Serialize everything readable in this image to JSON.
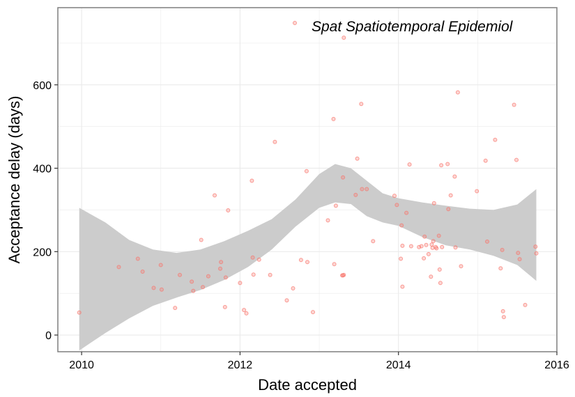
{
  "chart_data": {
    "type": "scatter",
    "title": "",
    "xlabel": "Date accepted",
    "ylabel": "Acceptance delay (days)",
    "xlim": [
      2009.7,
      2016.0
    ],
    "ylim": [
      -40,
      785
    ],
    "x_ticks": [
      2010,
      2012,
      2014,
      2016
    ],
    "y_ticks": [
      0,
      200,
      400,
      600
    ],
    "grid": true,
    "legend_position": "top-right",
    "colors": {
      "points": "#f8766d",
      "ribbon": "#cccccc",
      "panel_border": "#7f7f7f",
      "grid": "#ebebeb"
    },
    "series": [
      {
        "name": "Spat Spatiotemporal Epidemiol",
        "x": [
          2009.97,
          2010.47,
          2010.71,
          2010.77,
          2010.91,
          2011.0,
          2011.01,
          2011.18,
          2011.24,
          2011.39,
          2011.41,
          2011.51,
          2011.53,
          2011.6,
          2011.68,
          2011.75,
          2011.76,
          2011.81,
          2011.82,
          2011.85,
          2012.0,
          2012.05,
          2012.08,
          2012.15,
          2012.16,
          2012.17,
          2012.24,
          2012.38,
          2012.44,
          2012.59,
          2012.67,
          2012.77,
          2012.84,
          2012.85,
          2012.92,
          2013.11,
          2013.18,
          2013.19,
          2013.21,
          2013.29,
          2013.3,
          2013.3,
          2013.31,
          2013.31,
          2013.46,
          2013.48,
          2013.53,
          2013.54,
          2013.6,
          2013.68,
          2013.95,
          2013.98,
          2014.03,
          2014.04,
          2014.05,
          2014.05,
          2014.1,
          2014.14,
          2014.16,
          2014.26,
          2014.29,
          2014.32,
          2014.33,
          2014.35,
          2014.38,
          2014.41,
          2014.42,
          2014.43,
          2014.44,
          2014.45,
          2014.47,
          2014.48,
          2014.51,
          2014.52,
          2014.53,
          2014.54,
          2014.55,
          2014.62,
          2014.63,
          2014.66,
          2014.71,
          2014.72,
          2014.75,
          2014.79,
          2014.99,
          2015.1,
          2015.12,
          2015.22,
          2015.29,
          2015.31,
          2015.32,
          2015.33,
          2015.46,
          2015.49,
          2015.51,
          2015.53,
          2015.6,
          2015.73,
          2015.74
        ],
        "y": [
          54,
          163,
          183,
          152,
          113,
          168,
          109,
          65,
          144,
          128,
          106,
          228,
          115,
          141,
          335,
          159,
          175,
          67,
          138,
          299,
          125,
          60,
          52,
          370,
          186,
          145,
          181,
          144,
          463,
          83,
          112,
          180,
          393,
          175,
          55,
          275,
          518,
          170,
          310,
          143,
          143,
          378,
          713,
          144,
          336,
          423,
          554,
          350,
          350,
          225,
          334,
          312,
          183,
          263,
          116,
          214,
          293,
          409,
          213,
          211,
          213,
          184,
          236,
          216,
          194,
          140,
          217,
          209,
          225,
          316,
          211,
          208,
          238,
          157,
          125,
          407,
          211,
          410,
          302,
          335,
          380,
          210,
          582,
          165,
          345,
          418,
          224,
          468,
          160,
          204,
          57,
          43,
          552,
          420,
          197,
          182,
          72,
          212,
          196
        ]
      }
    ],
    "smooth": {
      "x": [
        2009.97,
        2010.3,
        2010.6,
        2010.9,
        2011.2,
        2011.5,
        2011.8,
        2012.1,
        2012.4,
        2012.7,
        2013.0,
        2013.2,
        2013.4,
        2013.6,
        2013.8,
        2014.0,
        2014.3,
        2014.6,
        2014.9,
        2015.2,
        2015.5,
        2015.74
      ],
      "upper": [
        305,
        270,
        228,
        205,
        197,
        205,
        225,
        250,
        278,
        325,
        386,
        410,
        400,
        370,
        340,
        328,
        318,
        310,
        303,
        300,
        313,
        350
      ],
      "lower": [
        -37,
        5,
        40,
        70,
        90,
        108,
        132,
        163,
        205,
        260,
        305,
        318,
        314,
        285,
        270,
        262,
        235,
        215,
        205,
        190,
        168,
        130
      ]
    }
  }
}
